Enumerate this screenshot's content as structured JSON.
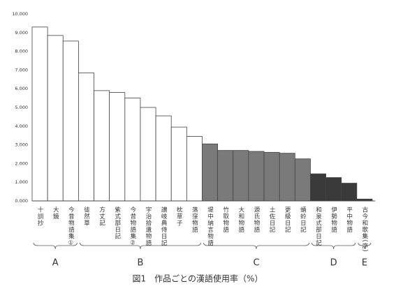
{
  "chart_data": {
    "type": "bar",
    "caption": "図1　作品ごとの漢語使用率（%）",
    "ylim": [
      0,
      10
    ],
    "yticks": [
      {
        "value": 0,
        "label": "0.000"
      },
      {
        "value": 1,
        "label": "1.000"
      },
      {
        "value": 2,
        "label": "2.000"
      },
      {
        "value": 3,
        "label": "3.000"
      },
      {
        "value": 4,
        "label": "4.000"
      },
      {
        "value": 5,
        "label": "5.000"
      },
      {
        "value": 6,
        "label": "6.000"
      },
      {
        "value": 7,
        "label": "7.000"
      },
      {
        "value": 8,
        "label": "8.000"
      },
      {
        "value": 9,
        "label": "9.000"
      },
      {
        "value": 10,
        "label": "10.000"
      }
    ],
    "groups": [
      {
        "label": "A",
        "color": "#ffffff",
        "categories": [
          "十訓抄",
          "大鏡",
          "今昔物語集①"
        ],
        "values": [
          9.3,
          8.85,
          8.55
        ]
      },
      {
        "label": "B",
        "color": "#ffffff",
        "categories": [
          "徒然草",
          "方丈記",
          "紫式部日記",
          "今昔物語集②",
          "宇治拾遺物語",
          "讃岐典侍日記",
          "枕草子",
          "落窪物語"
        ],
        "values": [
          6.85,
          5.9,
          5.8,
          5.5,
          5.0,
          4.55,
          3.95,
          3.45
        ]
      },
      {
        "label": "C",
        "color": "#7a7a7a",
        "categories": [
          "堤中納言物語",
          "竹取物語",
          "大和物語",
          "源氏物語",
          "土佐日記",
          "更級日記",
          "蜻蛉日記"
        ],
        "values": [
          3.05,
          2.7,
          2.7,
          2.65,
          2.6,
          2.55,
          2.25
        ]
      },
      {
        "label": "D",
        "color": "#3a3a3a",
        "categories": [
          "和泉式部日記",
          "伊勢物語",
          "平中物語"
        ],
        "values": [
          1.45,
          1.25,
          0.95
        ]
      },
      {
        "label": "E",
        "color": "#3a3a3a",
        "categories": [
          "古今和歌集(序)"
        ],
        "values": [
          0.1
        ]
      }
    ]
  }
}
